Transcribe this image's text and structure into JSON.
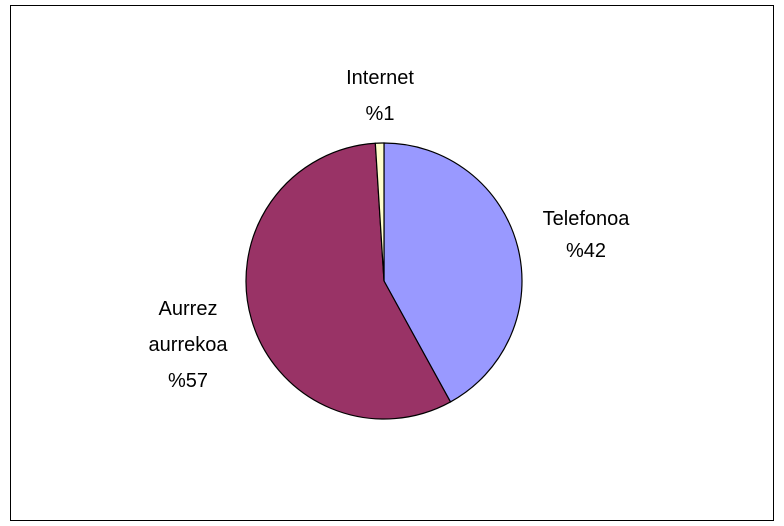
{
  "chart_data": {
    "type": "pie",
    "slices": [
      {
        "label": "Telefonoa",
        "percent_label": "%42",
        "value": 42,
        "color": "#9999ff"
      },
      {
        "label_lines": [
          "Aurrez",
          "aurrekoa"
        ],
        "percent_label": "%57",
        "value": 57,
        "color": "#993366"
      },
      {
        "label": "Internet",
        "percent_label": "%1",
        "value": 1,
        "color": "#ffffcc"
      }
    ],
    "start_angle_deg": 0,
    "direction": "clockwise",
    "legend": "none",
    "border_color": "#000000"
  }
}
